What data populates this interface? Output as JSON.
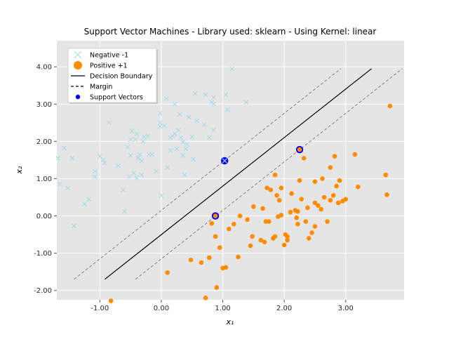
{
  "chart_data": {
    "type": "scatter",
    "title": "Support Vector Machines - Library used: sklearn - Using Kernel: linear",
    "xlabel": "x₁",
    "ylabel": "x₂",
    "xlim": [
      -1.7,
      3.95
    ],
    "ylim": [
      -2.25,
      4.7
    ],
    "x_ticks": [
      -1.0,
      0.0,
      1.0,
      2.0,
      3.0
    ],
    "x_tick_labels": [
      "-1.00",
      "0.00",
      "1.00",
      "2.00",
      "3.00"
    ],
    "y_ticks": [
      -2.0,
      -1.0,
      0.0,
      1.0,
      2.0,
      3.0,
      4.0
    ],
    "y_tick_labels": [
      "-2.00",
      "-1.00",
      "0.00",
      "1.00",
      "2.00",
      "3.00",
      "4.00"
    ],
    "grid": true,
    "legend_position": "upper-left",
    "background_color": "#e5e5e5",
    "grid_color": "#ffffff",
    "series": [
      {
        "name": "Negative -1",
        "marker": "x",
        "color": "#a6d8ec",
        "points": [
          [
            -1.68,
            1.55
          ],
          [
            -1.65,
            0.85
          ],
          [
            -1.58,
            1.82
          ],
          [
            -1.52,
            0.75
          ],
          [
            -1.45,
            1.55
          ],
          [
            -1.42,
            -0.27
          ],
          [
            -1.25,
            0.32
          ],
          [
            -1.18,
            0.45
          ],
          [
            -1.08,
            1.2
          ],
          [
            -1.08,
            1.05
          ],
          [
            -1.0,
            1.6
          ],
          [
            -0.95,
            1.5
          ],
          [
            -0.92,
            1.42
          ],
          [
            -0.85,
            2.5
          ],
          [
            -0.7,
            1.35
          ],
          [
            -0.62,
            0.7
          ],
          [
            -0.6,
            0.12
          ],
          [
            -0.55,
            1.85
          ],
          [
            -0.52,
            1.05
          ],
          [
            -0.5,
            2.05
          ],
          [
            -0.5,
            1.62
          ],
          [
            -0.48,
            2.28
          ],
          [
            -0.45,
            1.15
          ],
          [
            -0.42,
            2.05
          ],
          [
            -0.4,
            1.02
          ],
          [
            -0.4,
            2.2
          ],
          [
            -0.38,
            1.55
          ],
          [
            -0.35,
            1.65
          ],
          [
            -0.32,
            1.48
          ],
          [
            -0.32,
            1.1
          ],
          [
            -0.3,
            2.0
          ],
          [
            -0.28,
            2.12
          ],
          [
            -0.22,
            2.15
          ],
          [
            -0.2,
            1.65
          ],
          [
            -0.15,
            1.65
          ],
          [
            -0.08,
            1.2
          ],
          [
            -0.02,
            2.75
          ],
          [
            -0.02,
            2.5
          ],
          [
            -0.02,
            2.4
          ],
          [
            0.0,
            0.55
          ],
          [
            0.05,
            2.42
          ],
          [
            0.08,
            3.15
          ],
          [
            0.1,
            1.3
          ],
          [
            0.15,
            2.1
          ],
          [
            0.15,
            1.75
          ],
          [
            0.18,
            2.15
          ],
          [
            0.22,
            3.0
          ],
          [
            0.22,
            2.2
          ],
          [
            0.25,
            1.8
          ],
          [
            0.28,
            2.3
          ],
          [
            0.3,
            2.72
          ],
          [
            0.32,
            2.1
          ],
          [
            0.35,
            1.62
          ],
          [
            0.35,
            1.98
          ],
          [
            0.38,
            1.1
          ],
          [
            0.4,
            1.8
          ],
          [
            0.42,
            1.92
          ],
          [
            0.45,
            2.65
          ],
          [
            0.5,
            2.12
          ],
          [
            0.52,
            1.52
          ],
          [
            0.55,
            3.28
          ],
          [
            0.58,
            2.55
          ],
          [
            0.7,
            2.45
          ],
          [
            0.72,
            3.25
          ],
          [
            0.78,
            2.1
          ],
          [
            0.82,
            3.05
          ],
          [
            0.85,
            3.0
          ],
          [
            0.85,
            3.18
          ],
          [
            0.85,
            2.3
          ],
          [
            1.05,
            3.25
          ],
          [
            1.08,
            2.85
          ],
          [
            1.15,
            3.95
          ],
          [
            1.38,
            3.05
          ]
        ]
      },
      {
        "name": "Positive +1",
        "marker": "o",
        "color": "#ff8c00",
        "points": [
          [
            -0.82,
            -2.28
          ],
          [
            0.1,
            -1.52
          ],
          [
            0.48,
            -1.18
          ],
          [
            0.65,
            -1.25
          ],
          [
            0.72,
            -2.2
          ],
          [
            0.78,
            -1.12
          ],
          [
            0.82,
            -0.2
          ],
          [
            0.88,
            -0.55
          ],
          [
            0.9,
            -1.92
          ],
          [
            0.95,
            -0.85
          ],
          [
            1.0,
            -1.4
          ],
          [
            1.05,
            -1.38
          ],
          [
            1.1,
            -0.35
          ],
          [
            1.18,
            -0.22
          ],
          [
            1.25,
            -1.1
          ],
          [
            1.28,
            0.0
          ],
          [
            1.4,
            -0.1
          ],
          [
            1.45,
            -0.8
          ],
          [
            1.48,
            -0.55
          ],
          [
            1.5,
            0.25
          ],
          [
            1.62,
            -0.65
          ],
          [
            1.65,
            0.2
          ],
          [
            1.68,
            -0.7
          ],
          [
            1.7,
            -0.15
          ],
          [
            1.72,
            0.75
          ],
          [
            1.75,
            -0.15
          ],
          [
            1.78,
            0.7
          ],
          [
            1.82,
            -0.6
          ],
          [
            1.85,
            -0.55
          ],
          [
            1.85,
            1.1
          ],
          [
            1.88,
            0.55
          ],
          [
            1.9,
            -0.02
          ],
          [
            1.92,
            0.42
          ],
          [
            1.95,
            0.02
          ],
          [
            1.95,
            0.75
          ],
          [
            2.0,
            -0.78
          ],
          [
            2.02,
            -0.5
          ],
          [
            2.05,
            -0.65
          ],
          [
            2.05,
            -0.55
          ],
          [
            2.1,
            0.1
          ],
          [
            2.12,
            0.6
          ],
          [
            2.18,
            0.15
          ],
          [
            2.2,
            -0.05
          ],
          [
            2.22,
            0.12
          ],
          [
            2.22,
            -0.22
          ],
          [
            2.25,
            0.95
          ],
          [
            2.28,
            0.45
          ],
          [
            2.32,
            1.55
          ],
          [
            2.35,
            -0.15
          ],
          [
            2.38,
            0.22
          ],
          [
            2.4,
            -0.6
          ],
          [
            2.45,
            -0.45
          ],
          [
            2.5,
            0.35
          ],
          [
            2.5,
            0.92
          ],
          [
            2.5,
            -0.28
          ],
          [
            2.55,
            0.28
          ],
          [
            2.6,
            0.18
          ],
          [
            2.62,
            1.0
          ],
          [
            2.65,
            0.5
          ],
          [
            2.7,
            -0.15
          ],
          [
            2.75,
            1.3
          ],
          [
            2.75,
            0.42
          ],
          [
            2.8,
            0.55
          ],
          [
            2.82,
            1.6
          ],
          [
            2.85,
            0.8
          ],
          [
            2.88,
            0.35
          ],
          [
            2.9,
            0.95
          ],
          [
            2.95,
            0.4
          ],
          [
            3.0,
            0.45
          ],
          [
            3.15,
            1.65
          ],
          [
            3.2,
            0.78
          ],
          [
            3.65,
            1.1
          ],
          [
            3.67,
            0.57
          ],
          [
            3.72,
            2.95
          ]
        ]
      }
    ],
    "support_vectors": {
      "name": "Support Vectors",
      "color": "#0000ff",
      "points": [
        [
          0.88,
          0.0
        ],
        [
          1.03,
          1.48
        ],
        [
          2.25,
          1.78
        ]
      ]
    },
    "decision_boundary": {
      "name": "Decision Boundary",
      "color": "#000000",
      "style": "solid",
      "points": [
        [
          -0.92,
          -1.7
        ],
        [
          3.42,
          3.95
        ]
      ]
    },
    "margin": {
      "name": "Margin",
      "color": "#808080",
      "style": "dashed",
      "lines": [
        [
          [
            -1.42,
            -1.7
          ],
          [
            2.92,
            3.95
          ]
        ],
        [
          [
            -0.42,
            -1.7
          ],
          [
            3.92,
            3.95
          ]
        ]
      ]
    },
    "legend": [
      {
        "label": "Negative -1",
        "kind": "x",
        "color": "#a6d8ec"
      },
      {
        "label": "Positive +1",
        "kind": "circle",
        "color": "#ff8c00"
      },
      {
        "label": "Decision Boundary",
        "kind": "solid-line",
        "color": "#000000"
      },
      {
        "label": "Margin",
        "kind": "dashed-line",
        "color": "#000000"
      },
      {
        "label": "Support Vectors",
        "kind": "dot",
        "color": "#0000ff"
      }
    ]
  }
}
